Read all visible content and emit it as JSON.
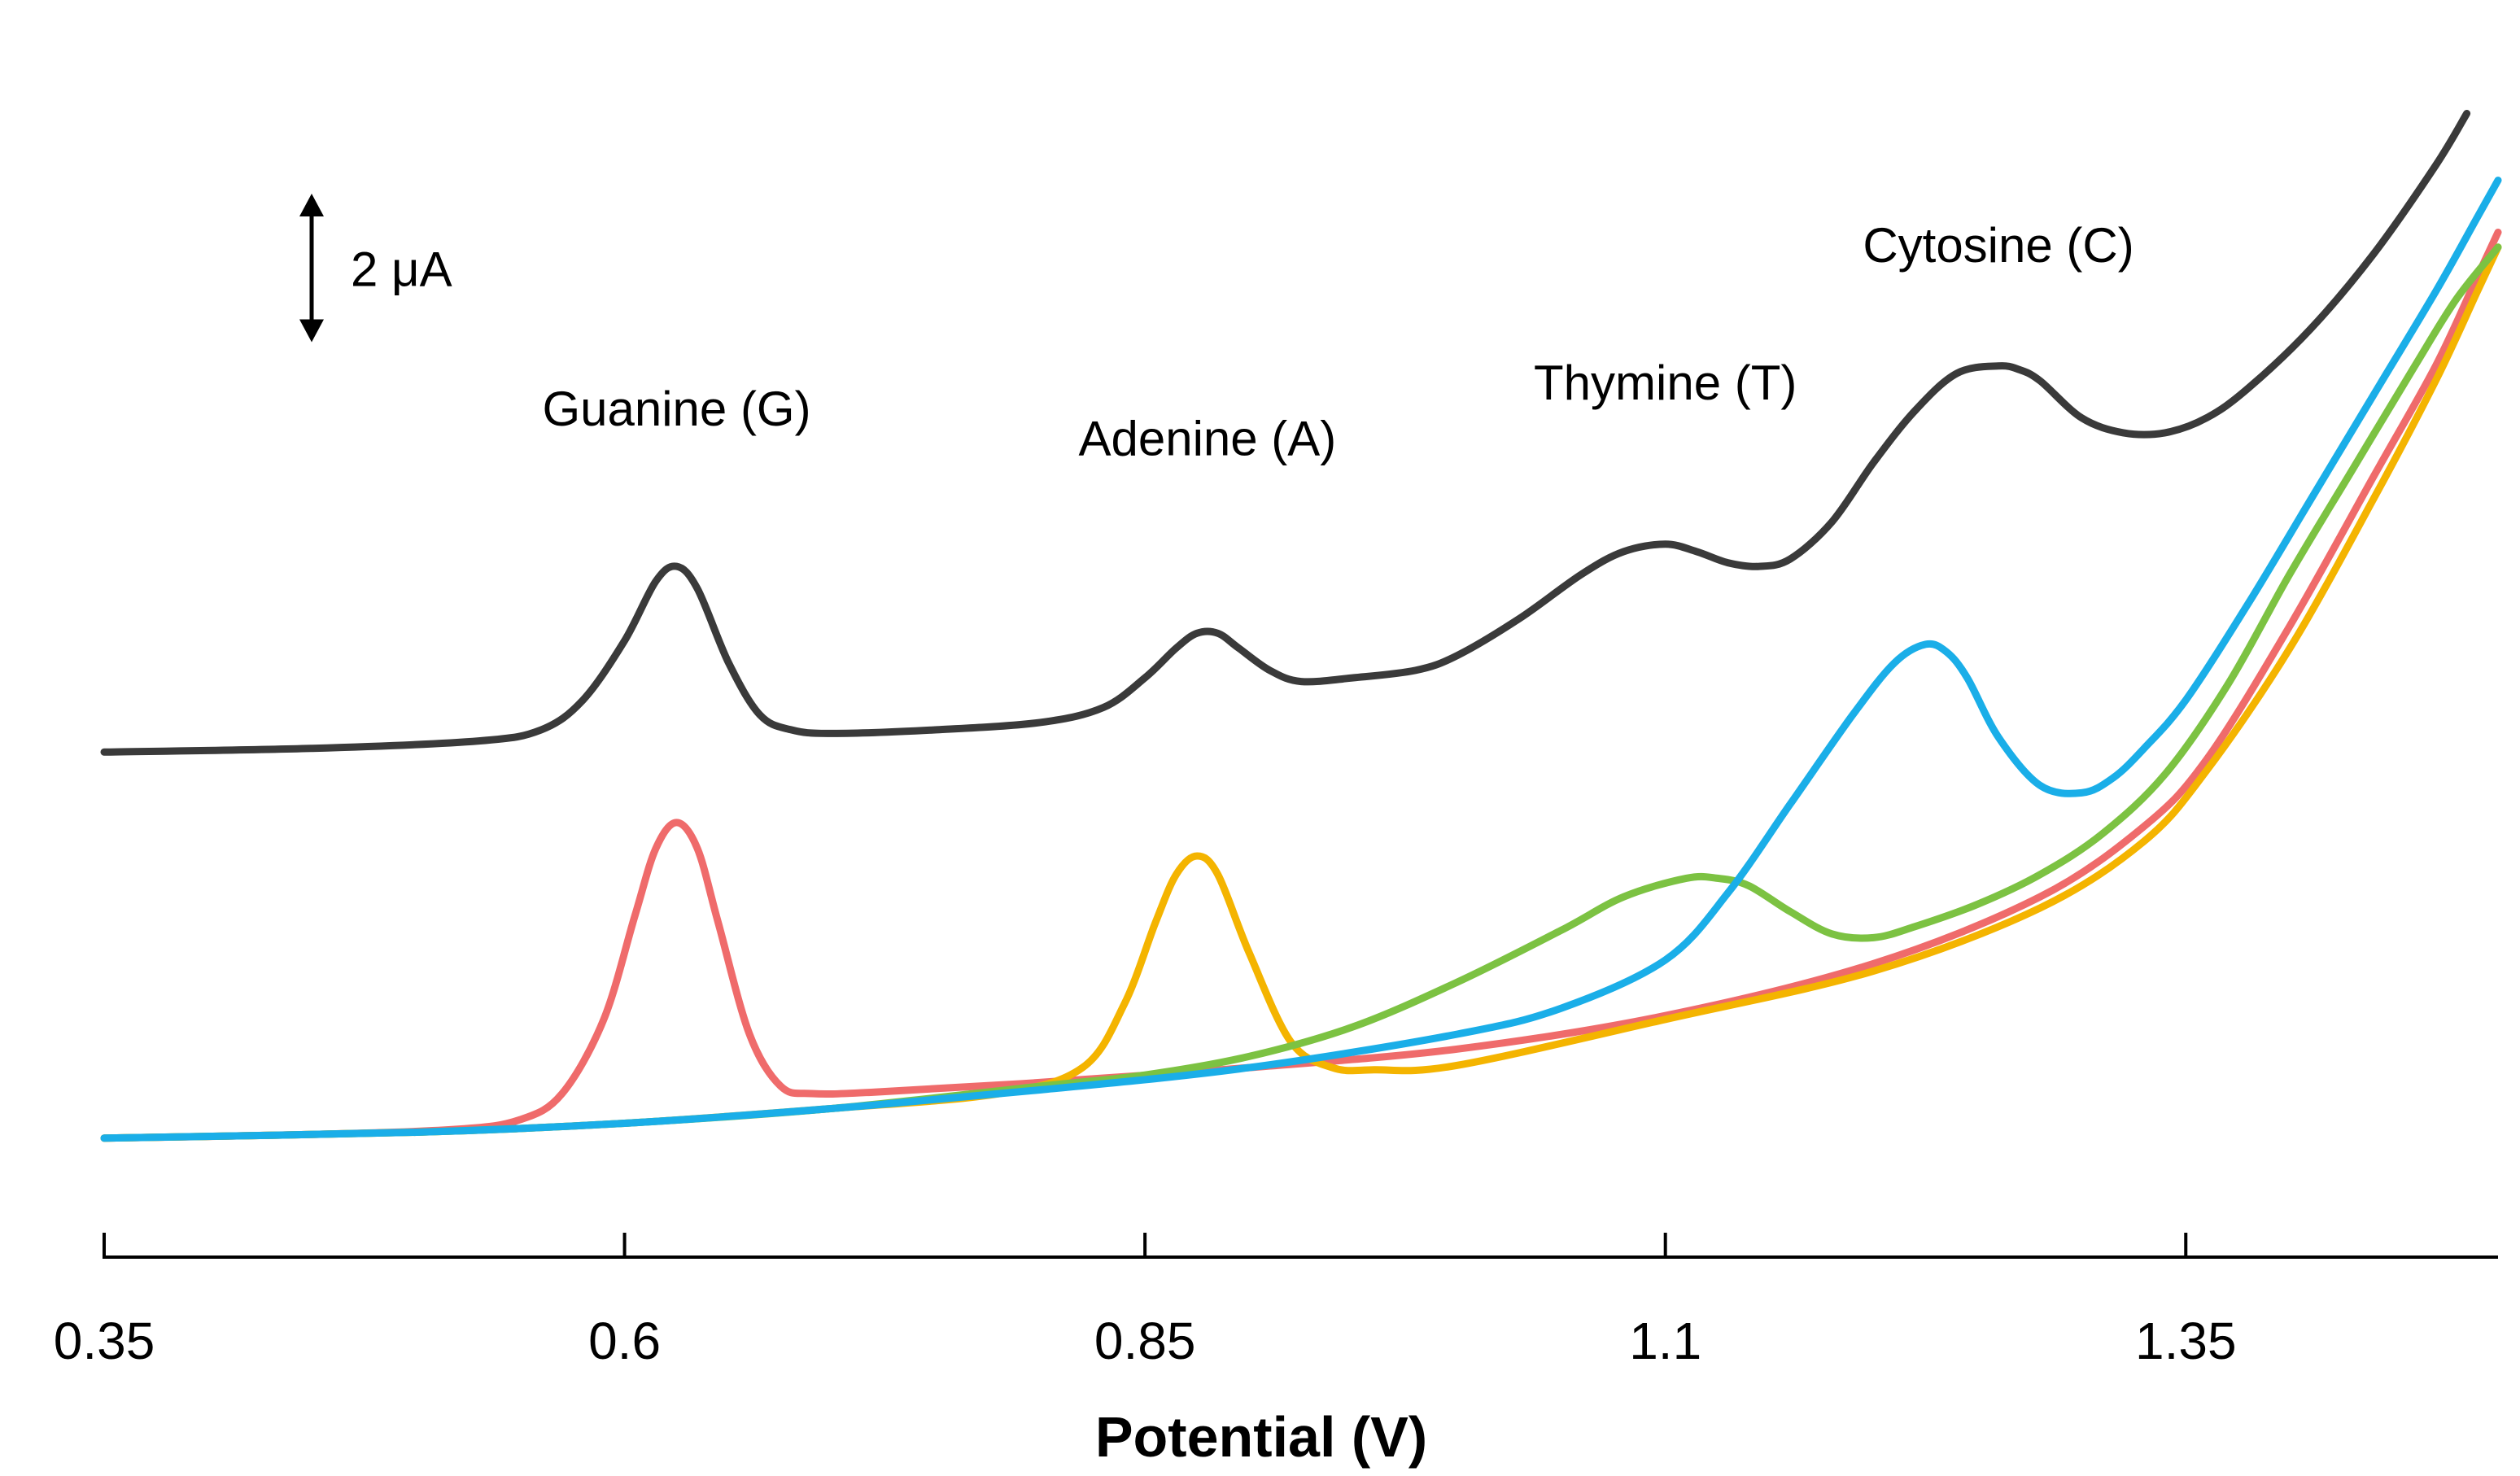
{
  "chart_data": {
    "type": "line",
    "title": "",
    "xlabel": "Potential (V)",
    "ylabel": "",
    "xlim": [
      0.35,
      1.5
    ],
    "ylim": [
      -1,
      15
    ],
    "x_ticks": [
      "0.35",
      "0.6",
      "0.85",
      "1.1",
      "1.35"
    ],
    "x_tick_values": [
      0.35,
      0.6,
      0.85,
      1.1,
      1.35
    ],
    "y_axis_visible": false,
    "grid": false,
    "legend": "none",
    "scale_bar": {
      "label": "2 μA",
      "value_uA": 2
    },
    "annotations": [
      {
        "text": "Guanine (G)",
        "x": 0.625,
        "y": 9.6
      },
      {
        "text": "Adenine (A)",
        "x": 0.88,
        "y": 9.2
      },
      {
        "text": "Thymine (T)",
        "x": 1.1,
        "y": 9.95
      },
      {
        "text": "Cytosine (C)",
        "x": 1.26,
        "y": 11.8
      }
    ],
    "series": [
      {
        "color": "#3a3a3a",
        "x": [
          0.35,
          0.45,
          0.53,
          0.56,
          0.58,
          0.6,
          0.615,
          0.625,
          0.635,
          0.65,
          0.665,
          0.68,
          0.7,
          0.75,
          0.8,
          0.83,
          0.85,
          0.865,
          0.875,
          0.885,
          0.895,
          0.91,
          0.925,
          0.95,
          0.98,
          1.0,
          1.03,
          1.06,
          1.08,
          1.1,
          1.115,
          1.13,
          1.145,
          1.16,
          1.18,
          1.2,
          1.22,
          1.24,
          1.26,
          1.27,
          1.28,
          1.3,
          1.32,
          1.34,
          1.36,
          1.38,
          1.41,
          1.44,
          1.47,
          1.485
        ],
        "y": [
          5.2,
          5.25,
          5.35,
          5.5,
          5.9,
          6.7,
          7.5,
          7.7,
          7.4,
          6.4,
          5.7,
          5.5,
          5.45,
          5.5,
          5.6,
          5.8,
          6.2,
          6.6,
          6.8,
          6.8,
          6.6,
          6.3,
          6.15,
          6.2,
          6.3,
          6.5,
          7.0,
          7.6,
          7.9,
          8.0,
          7.9,
          7.75,
          7.7,
          7.8,
          8.3,
          9.1,
          9.8,
          10.3,
          10.4,
          10.35,
          10.2,
          9.7,
          9.5,
          9.5,
          9.7,
          10.1,
          10.9,
          11.9,
          13.1,
          13.8
        ]
      },
      {
        "color": "#ef6b6b",
        "x": [
          0.35,
          0.45,
          0.52,
          0.55,
          0.57,
          0.59,
          0.605,
          0.615,
          0.625,
          0.635,
          0.645,
          0.66,
          0.675,
          0.69,
          0.72,
          0.8,
          0.9,
          1.0,
          1.1,
          1.2,
          1.28,
          1.33,
          1.36,
          1.4,
          1.44,
          1.47,
          1.49,
          1.5
        ],
        "y": [
          0.0,
          0.05,
          0.12,
          0.25,
          0.6,
          1.6,
          3.0,
          3.9,
          4.25,
          3.9,
          2.9,
          1.4,
          0.7,
          0.6,
          0.62,
          0.75,
          0.95,
          1.2,
          1.65,
          2.35,
          3.25,
          4.2,
          5.1,
          6.9,
          8.9,
          10.4,
          11.6,
          12.2
        ]
      },
      {
        "color": "#f4b400",
        "x": [
          0.35,
          0.5,
          0.6,
          0.7,
          0.78,
          0.82,
          0.84,
          0.855,
          0.865,
          0.875,
          0.885,
          0.9,
          0.92,
          0.94,
          0.96,
          1.0,
          1.1,
          1.2,
          1.28,
          1.33,
          1.36,
          1.4,
          1.44,
          1.47,
          1.49,
          1.5
        ],
        "y": [
          0.0,
          0.08,
          0.2,
          0.4,
          0.6,
          0.95,
          1.8,
          2.9,
          3.55,
          3.8,
          3.55,
          2.5,
          1.3,
          0.95,
          0.92,
          0.98,
          1.6,
          2.25,
          3.1,
          4.0,
          4.95,
          6.6,
          8.6,
          10.2,
          11.4,
          12.0
        ]
      },
      {
        "color": "#7cc242",
        "x": [
          0.35,
          0.5,
          0.6,
          0.7,
          0.8,
          0.85,
          0.9,
          0.95,
          1.0,
          1.05,
          1.08,
          1.11,
          1.125,
          1.14,
          1.16,
          1.18,
          1.2,
          1.22,
          1.25,
          1.28,
          1.31,
          1.34,
          1.37,
          1.4,
          1.43,
          1.46,
          1.48,
          1.5
        ],
        "y": [
          0.0,
          0.08,
          0.2,
          0.4,
          0.7,
          0.85,
          1.1,
          1.5,
          2.1,
          2.8,
          3.25,
          3.5,
          3.5,
          3.4,
          3.05,
          2.75,
          2.7,
          2.85,
          3.15,
          3.55,
          4.1,
          4.9,
          6.1,
          7.6,
          9.0,
          10.4,
          11.3,
          12.0
        ]
      },
      {
        "color": "#1aaee8",
        "x": [
          0.35,
          0.5,
          0.6,
          0.7,
          0.8,
          0.9,
          1.0,
          1.05,
          1.1,
          1.13,
          1.16,
          1.19,
          1.21,
          1.225,
          1.235,
          1.245,
          1.26,
          1.28,
          1.3,
          1.315,
          1.33,
          1.35,
          1.38,
          1.41,
          1.44,
          1.47,
          1.49,
          1.5
        ],
        "y": [
          0.0,
          0.08,
          0.2,
          0.4,
          0.65,
          0.95,
          1.4,
          1.75,
          2.4,
          3.3,
          4.5,
          5.7,
          6.4,
          6.65,
          6.55,
          6.2,
          5.4,
          4.75,
          4.65,
          4.85,
          5.25,
          5.9,
          7.2,
          8.6,
          10.0,
          11.4,
          12.4,
          12.9
        ]
      }
    ]
  }
}
